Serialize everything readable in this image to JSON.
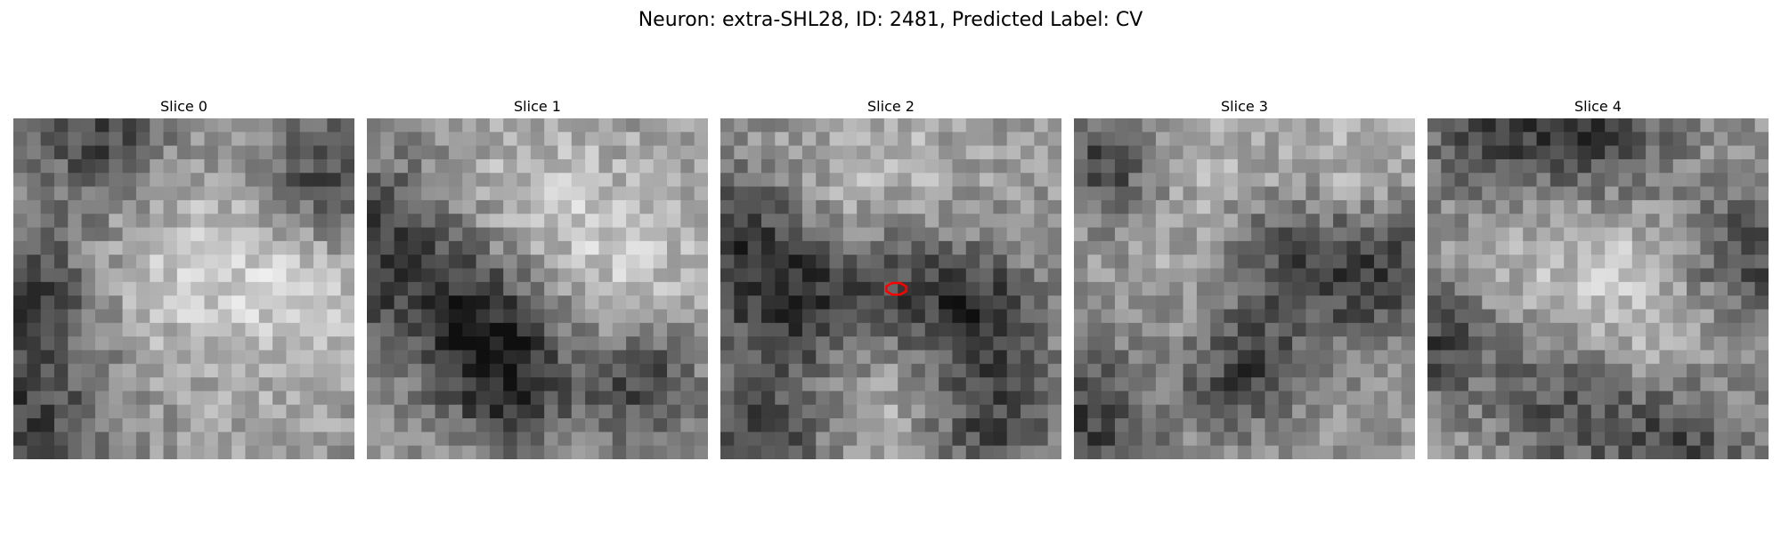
{
  "figure": {
    "title": "Neuron: extra-SHL28, ID: 2481, Predicted Label: CV"
  },
  "grid_size": 25,
  "marker": {
    "color": "#ff0000",
    "slice_index": 2
  },
  "slices": [
    {
      "label": "Slice 0",
      "seed": 11,
      "dark_blobs": [
        [
          6,
          1,
          3.5
        ],
        [
          0,
          12,
          4
        ],
        [
          0,
          22,
          5
        ],
        [
          22,
          4,
          3.5
        ]
      ],
      "light_blobs": [
        [
          12,
          11,
          6
        ],
        [
          20,
          12,
          5
        ]
      ]
    },
    {
      "label": "Slice 1",
      "seed": 23,
      "dark_blobs": [
        [
          0,
          9,
          5
        ],
        [
          8,
          14,
          4
        ],
        [
          10,
          19,
          3.5
        ],
        [
          20,
          19,
          3
        ]
      ],
      "light_blobs": [
        [
          11,
          6,
          5
        ],
        [
          19,
          10,
          5
        ]
      ]
    },
    {
      "label": "Slice 2",
      "seed": 37,
      "dark_blobs": [
        [
          0,
          8,
          4
        ],
        [
          5,
          13,
          3.5
        ],
        [
          13,
          12,
          4
        ],
        [
          19,
          14,
          3
        ],
        [
          2,
          23,
          4
        ],
        [
          19,
          22,
          3.5
        ]
      ],
      "light_blobs": [
        [
          11,
          5,
          5
        ],
        [
          12,
          20,
          4
        ]
      ]
    },
    {
      "label": "Slice 3",
      "seed": 51,
      "dark_blobs": [
        [
          2,
          3,
          3
        ],
        [
          15,
          9,
          4
        ],
        [
          22,
          11,
          3.5
        ],
        [
          12,
          18,
          3
        ],
        [
          0,
          22,
          4
        ]
      ],
      "light_blobs": [
        [
          10,
          6,
          5
        ],
        [
          19,
          4,
          4
        ]
      ]
    },
    {
      "label": "Slice 4",
      "seed": 67,
      "dark_blobs": [
        [
          5,
          1,
          4
        ],
        [
          13,
          1,
          3.5
        ],
        [
          23,
          10,
          4
        ],
        [
          0,
          16,
          3
        ],
        [
          10,
          20,
          4
        ],
        [
          18,
          23,
          3.5
        ]
      ],
      "light_blobs": [
        [
          11,
          10,
          6
        ],
        [
          16,
          16,
          5
        ]
      ]
    }
  ]
}
